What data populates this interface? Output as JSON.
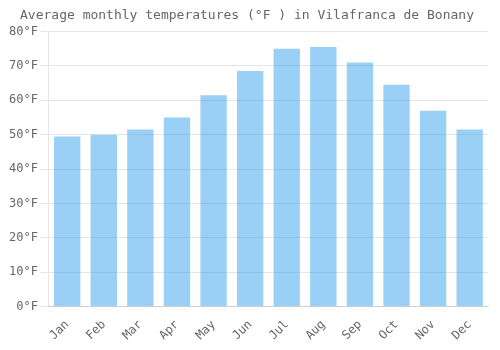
{
  "chart_data": {
    "type": "bar",
    "title": "Average monthly temperatures (°F ) in Vilafranca de Bonany",
    "categories": [
      "Jan",
      "Feb",
      "Mar",
      "Apr",
      "May",
      "Jun",
      "Jul",
      "Aug",
      "Sep",
      "Oct",
      "Nov",
      "Dec"
    ],
    "values": [
      49.5,
      50.0,
      51.5,
      55.0,
      61.5,
      68.5,
      75.0,
      75.5,
      71.0,
      64.5,
      57.0,
      51.5
    ],
    "ylim": [
      0,
      80
    ],
    "yticks": [
      {
        "value": 0,
        "label": "0°F"
      },
      {
        "value": 10,
        "label": "10°F"
      },
      {
        "value": 20,
        "label": "20°F"
      },
      {
        "value": 30,
        "label": "30°F"
      },
      {
        "value": 40,
        "label": "40°F"
      },
      {
        "value": 50,
        "label": "50°F"
      },
      {
        "value": 60,
        "label": "60°F"
      },
      {
        "value": 70,
        "label": "70°F"
      },
      {
        "value": 80,
        "label": "80°F"
      }
    ],
    "grid": true
  }
}
